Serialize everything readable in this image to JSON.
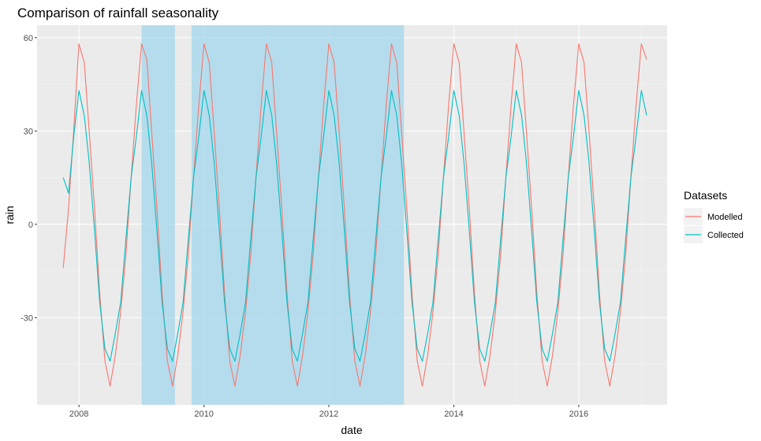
{
  "chart_data": {
    "type": "line",
    "title": "Comparison of rainfall seasonality",
    "xlabel": "date",
    "ylabel": "rain",
    "x_range": [
      "2007-05-01",
      "2017-06-01"
    ],
    "ylim": [
      -58,
      64
    ],
    "x_ticks": [
      {
        "date": "2008-01-01",
        "label": "2008"
      },
      {
        "date": "2010-01-01",
        "label": "2010"
      },
      {
        "date": "2012-01-01",
        "label": "2012"
      },
      {
        "date": "2014-01-01",
        "label": "2014"
      },
      {
        "date": "2016-01-01",
        "label": "2016"
      }
    ],
    "y_ticks": [
      {
        "value": 60,
        "label": "60"
      },
      {
        "value": 30,
        "label": "30"
      },
      {
        "value": 0,
        "label": "0"
      },
      {
        "value": -30,
        "label": "-30"
      }
    ],
    "grid": true,
    "legend": {
      "title": "Datasets",
      "position": "right",
      "entries": [
        {
          "label": "Modelled",
          "color": "#F8766D"
        },
        {
          "label": "Collected",
          "color": "#00BFC4"
        }
      ]
    },
    "highlight_periods": [
      {
        "start": "2009-01-01",
        "end": "2009-07-15",
        "color": "#9FD6EB"
      },
      {
        "start": "2009-10-20",
        "end": "2013-03-15",
        "color": "#9FD6EB"
      }
    ],
    "series": [
      {
        "name": "Modelled",
        "color": "#F8766D",
        "points": [
          [
            "2007-10-01",
            -14
          ],
          [
            "2007-11-01",
            5
          ],
          [
            "2007-12-01",
            30
          ],
          [
            "2008-01-01",
            58
          ],
          [
            "2008-02-01",
            52
          ],
          [
            "2008-03-01",
            30
          ],
          [
            "2008-04-01",
            5
          ],
          [
            "2008-05-01",
            -22
          ],
          [
            "2008-06-01",
            -44
          ],
          [
            "2008-07-01",
            -52
          ],
          [
            "2008-08-01",
            -42
          ],
          [
            "2008-09-01",
            -28
          ],
          [
            "2008-10-01",
            -10
          ],
          [
            "2008-11-01",
            15
          ],
          [
            "2008-12-01",
            38
          ],
          [
            "2009-01-01",
            58
          ],
          [
            "2009-02-01",
            53
          ],
          [
            "2009-03-01",
            30
          ],
          [
            "2009-04-01",
            5
          ],
          [
            "2009-05-01",
            -22
          ],
          [
            "2009-06-01",
            -44
          ],
          [
            "2009-07-01",
            -52
          ],
          [
            "2009-08-01",
            -42
          ],
          [
            "2009-09-01",
            -28
          ],
          [
            "2009-10-01",
            -10
          ],
          [
            "2009-11-01",
            15
          ],
          [
            "2009-12-01",
            38
          ],
          [
            "2010-01-01",
            58
          ],
          [
            "2010-02-01",
            52
          ],
          [
            "2010-03-01",
            30
          ],
          [
            "2010-04-01",
            5
          ],
          [
            "2010-05-01",
            -22
          ],
          [
            "2010-06-01",
            -44
          ],
          [
            "2010-07-01",
            -52
          ],
          [
            "2010-08-01",
            -42
          ],
          [
            "2010-09-01",
            -28
          ],
          [
            "2010-10-01",
            -10
          ],
          [
            "2010-11-01",
            15
          ],
          [
            "2010-12-01",
            38
          ],
          [
            "2011-01-01",
            58
          ],
          [
            "2011-02-01",
            52
          ],
          [
            "2011-03-01",
            30
          ],
          [
            "2011-04-01",
            5
          ],
          [
            "2011-05-01",
            -22
          ],
          [
            "2011-06-01",
            -44
          ],
          [
            "2011-07-01",
            -52
          ],
          [
            "2011-08-01",
            -42
          ],
          [
            "2011-09-01",
            -28
          ],
          [
            "2011-10-01",
            -10
          ],
          [
            "2011-11-01",
            15
          ],
          [
            "2011-12-01",
            38
          ],
          [
            "2012-01-01",
            58
          ],
          [
            "2012-02-01",
            52
          ],
          [
            "2012-03-01",
            30
          ],
          [
            "2012-04-01",
            5
          ],
          [
            "2012-05-01",
            -22
          ],
          [
            "2012-06-01",
            -44
          ],
          [
            "2012-07-01",
            -52
          ],
          [
            "2012-08-01",
            -42
          ],
          [
            "2012-09-01",
            -28
          ],
          [
            "2012-10-01",
            -10
          ],
          [
            "2012-11-01",
            15
          ],
          [
            "2012-12-01",
            38
          ],
          [
            "2013-01-01",
            58
          ],
          [
            "2013-02-01",
            52
          ],
          [
            "2013-03-01",
            30
          ],
          [
            "2013-04-01",
            5
          ],
          [
            "2013-05-01",
            -22
          ],
          [
            "2013-06-01",
            -44
          ],
          [
            "2013-07-01",
            -52
          ],
          [
            "2013-08-01",
            -42
          ],
          [
            "2013-09-01",
            -28
          ],
          [
            "2013-10-01",
            -10
          ],
          [
            "2013-11-01",
            15
          ],
          [
            "2013-12-01",
            38
          ],
          [
            "2014-01-01",
            58
          ],
          [
            "2014-02-01",
            52
          ],
          [
            "2014-03-01",
            30
          ],
          [
            "2014-04-01",
            5
          ],
          [
            "2014-05-01",
            -22
          ],
          [
            "2014-06-01",
            -44
          ],
          [
            "2014-07-01",
            -52
          ],
          [
            "2014-08-01",
            -42
          ],
          [
            "2014-09-01",
            -28
          ],
          [
            "2014-10-01",
            -10
          ],
          [
            "2014-11-01",
            15
          ],
          [
            "2014-12-01",
            38
          ],
          [
            "2015-01-01",
            58
          ],
          [
            "2015-02-01",
            52
          ],
          [
            "2015-03-01",
            30
          ],
          [
            "2015-04-01",
            5
          ],
          [
            "2015-05-01",
            -22
          ],
          [
            "2015-06-01",
            -44
          ],
          [
            "2015-07-01",
            -52
          ],
          [
            "2015-08-01",
            -42
          ],
          [
            "2015-09-01",
            -28
          ],
          [
            "2015-10-01",
            -10
          ],
          [
            "2015-11-01",
            15
          ],
          [
            "2015-12-01",
            38
          ],
          [
            "2016-01-01",
            58
          ],
          [
            "2016-02-01",
            52
          ],
          [
            "2016-03-01",
            30
          ],
          [
            "2016-04-01",
            5
          ],
          [
            "2016-05-01",
            -22
          ],
          [
            "2016-06-01",
            -44
          ],
          [
            "2016-07-01",
            -52
          ],
          [
            "2016-08-01",
            -42
          ],
          [
            "2016-09-01",
            -28
          ],
          [
            "2016-10-01",
            -10
          ],
          [
            "2016-11-01",
            15
          ],
          [
            "2016-12-01",
            38
          ],
          [
            "2017-01-01",
            58
          ],
          [
            "2017-02-01",
            53
          ]
        ]
      },
      {
        "name": "Collected",
        "color": "#00BFC4",
        "points": [
          [
            "2007-10-01",
            15
          ],
          [
            "2007-11-01",
            10
          ],
          [
            "2007-12-01",
            28
          ],
          [
            "2008-01-01",
            43
          ],
          [
            "2008-02-01",
            35
          ],
          [
            "2008-03-01",
            20
          ],
          [
            "2008-04-01",
            -2
          ],
          [
            "2008-05-01",
            -25
          ],
          [
            "2008-06-01",
            -40
          ],
          [
            "2008-07-01",
            -44
          ],
          [
            "2008-08-01",
            -35
          ],
          [
            "2008-09-01",
            -25
          ],
          [
            "2008-10-01",
            -5
          ],
          [
            "2008-11-01",
            15
          ],
          [
            "2008-12-01",
            28
          ],
          [
            "2009-01-01",
            43
          ],
          [
            "2009-02-01",
            35
          ],
          [
            "2009-03-01",
            20
          ],
          [
            "2009-04-01",
            -2
          ],
          [
            "2009-05-01",
            -25
          ],
          [
            "2009-06-01",
            -40
          ],
          [
            "2009-07-01",
            -44
          ],
          [
            "2009-08-01",
            -35
          ],
          [
            "2009-09-01",
            -25
          ],
          [
            "2009-10-01",
            -5
          ],
          [
            "2009-11-01",
            15
          ],
          [
            "2009-12-01",
            28
          ],
          [
            "2010-01-01",
            43
          ],
          [
            "2010-02-01",
            35
          ],
          [
            "2010-03-01",
            20
          ],
          [
            "2010-04-01",
            -2
          ],
          [
            "2010-05-01",
            -25
          ],
          [
            "2010-06-01",
            -40
          ],
          [
            "2010-07-01",
            -44
          ],
          [
            "2010-08-01",
            -35
          ],
          [
            "2010-09-01",
            -25
          ],
          [
            "2010-10-01",
            -5
          ],
          [
            "2010-11-01",
            15
          ],
          [
            "2010-12-01",
            28
          ],
          [
            "2011-01-01",
            43
          ],
          [
            "2011-02-01",
            35
          ],
          [
            "2011-03-01",
            20
          ],
          [
            "2011-04-01",
            -2
          ],
          [
            "2011-05-01",
            -25
          ],
          [
            "2011-06-01",
            -40
          ],
          [
            "2011-07-01",
            -44
          ],
          [
            "2011-08-01",
            -35
          ],
          [
            "2011-09-01",
            -25
          ],
          [
            "2011-10-01",
            -5
          ],
          [
            "2011-11-01",
            15
          ],
          [
            "2011-12-01",
            28
          ],
          [
            "2012-01-01",
            43
          ],
          [
            "2012-02-01",
            35
          ],
          [
            "2012-03-01",
            20
          ],
          [
            "2012-04-01",
            -2
          ],
          [
            "2012-05-01",
            -25
          ],
          [
            "2012-06-01",
            -40
          ],
          [
            "2012-07-01",
            -44
          ],
          [
            "2012-08-01",
            -35
          ],
          [
            "2012-09-01",
            -25
          ],
          [
            "2012-10-01",
            -5
          ],
          [
            "2012-11-01",
            15
          ],
          [
            "2012-12-01",
            28
          ],
          [
            "2013-01-01",
            43
          ],
          [
            "2013-02-01",
            35
          ],
          [
            "2013-03-01",
            20
          ],
          [
            "2013-04-01",
            -2
          ],
          [
            "2013-05-01",
            -25
          ],
          [
            "2013-06-01",
            -40
          ],
          [
            "2013-07-01",
            -44
          ],
          [
            "2013-08-01",
            -35
          ],
          [
            "2013-09-01",
            -25
          ],
          [
            "2013-10-01",
            -5
          ],
          [
            "2013-11-01",
            15
          ],
          [
            "2013-12-01",
            28
          ],
          [
            "2014-01-01",
            43
          ],
          [
            "2014-02-01",
            35
          ],
          [
            "2014-03-01",
            20
          ],
          [
            "2014-04-01",
            -2
          ],
          [
            "2014-05-01",
            -25
          ],
          [
            "2014-06-01",
            -40
          ],
          [
            "2014-07-01",
            -44
          ],
          [
            "2014-08-01",
            -35
          ],
          [
            "2014-09-01",
            -25
          ],
          [
            "2014-10-01",
            -5
          ],
          [
            "2014-11-01",
            15
          ],
          [
            "2014-12-01",
            28
          ],
          [
            "2015-01-01",
            43
          ],
          [
            "2015-02-01",
            35
          ],
          [
            "2015-03-01",
            20
          ],
          [
            "2015-04-01",
            -2
          ],
          [
            "2015-05-01",
            -25
          ],
          [
            "2015-06-01",
            -40
          ],
          [
            "2015-07-01",
            -44
          ],
          [
            "2015-08-01",
            -35
          ],
          [
            "2015-09-01",
            -25
          ],
          [
            "2015-10-01",
            -5
          ],
          [
            "2015-11-01",
            15
          ],
          [
            "2015-12-01",
            28
          ],
          [
            "2016-01-01",
            43
          ],
          [
            "2016-02-01",
            35
          ],
          [
            "2016-03-01",
            20
          ],
          [
            "2016-04-01",
            -2
          ],
          [
            "2016-05-01",
            -25
          ],
          [
            "2016-06-01",
            -40
          ],
          [
            "2016-07-01",
            -44
          ],
          [
            "2016-08-01",
            -35
          ],
          [
            "2016-09-01",
            -25
          ],
          [
            "2016-10-01",
            -5
          ],
          [
            "2016-11-01",
            15
          ],
          [
            "2016-12-01",
            28
          ],
          [
            "2017-01-01",
            43
          ],
          [
            "2017-02-01",
            35
          ]
        ]
      }
    ]
  }
}
